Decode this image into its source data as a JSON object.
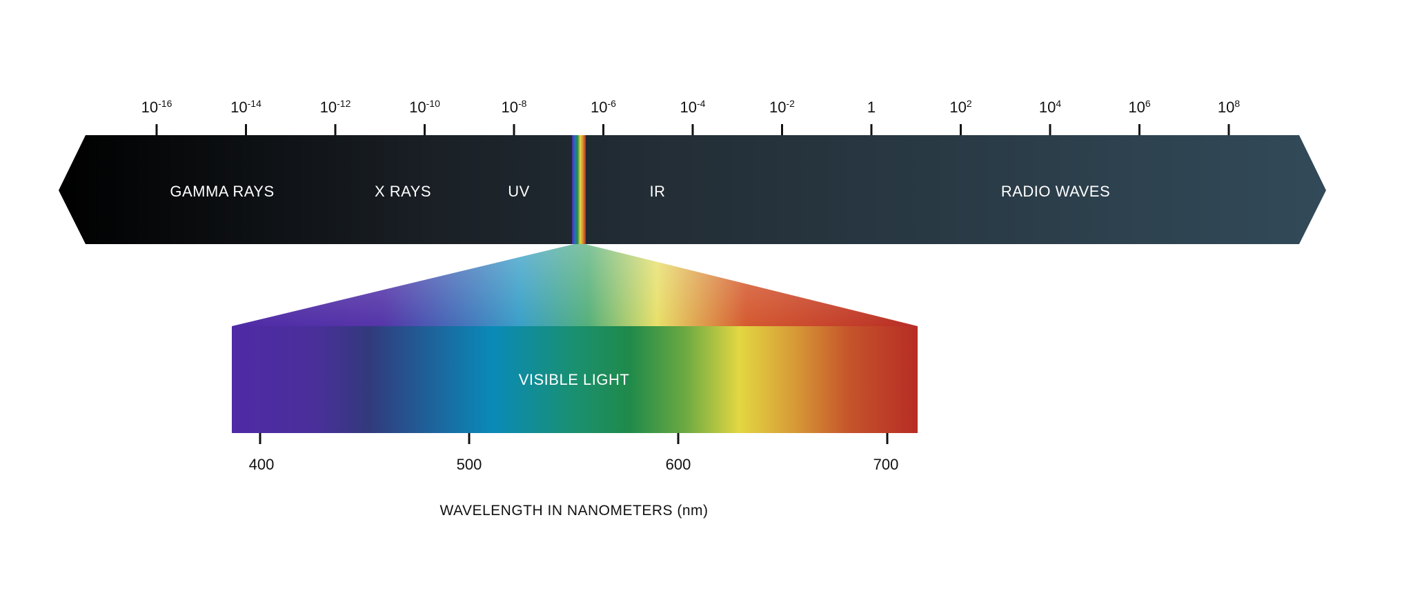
{
  "spectrum": {
    "scale_ticks": [
      {
        "base": "10",
        "exp": "-16"
      },
      {
        "base": "10",
        "exp": "-14"
      },
      {
        "base": "10",
        "exp": "-12"
      },
      {
        "base": "10",
        "exp": "-10"
      },
      {
        "base": "10",
        "exp": "-8"
      },
      {
        "base": "10",
        "exp": "-6"
      },
      {
        "base": "10",
        "exp": "-4"
      },
      {
        "base": "10",
        "exp": "-2"
      },
      {
        "base": "1",
        "exp": ""
      },
      {
        "base": "10",
        "exp": "2"
      },
      {
        "base": "10",
        "exp": "4"
      },
      {
        "base": "10",
        "exp": "6"
      },
      {
        "base": "10",
        "exp": "8"
      }
    ],
    "bands": [
      "GAMMA RAYS",
      "X RAYS",
      "UV",
      "IR",
      "RADIO WAVES"
    ],
    "bar_colors": {
      "dark": "#000000",
      "mid": "#1f2a33",
      "light": "#304655"
    }
  },
  "visible": {
    "label": "VISIBLE LIGHT",
    "nm_ticks": [
      "400",
      "500",
      "600",
      "700"
    ],
    "axis_title": "WAVELENGTH IN NANOMETERS (nm)",
    "colors": {
      "violet": "#4e2aa0",
      "indigo": "#3b3a8a",
      "blue": "#0a8bb8",
      "green": "#1f8a4a",
      "yellow": "#e2d541",
      "orange": "#d68a35",
      "red": "#b82d25"
    }
  }
}
